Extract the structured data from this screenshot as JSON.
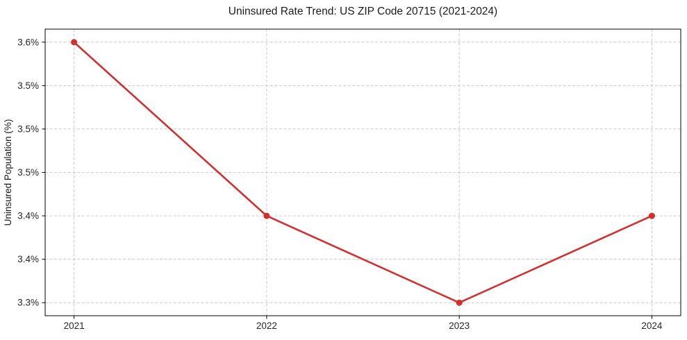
{
  "chart_data": {
    "type": "line",
    "title": "Uninsured Rate Trend: US ZIP Code 20715 (2021-2024)",
    "xlabel": "",
    "ylabel": "Uninsured Population (%)",
    "x": [
      2021,
      2022,
      2023,
      2024
    ],
    "series": [
      {
        "name": "Uninsured Rate",
        "values": [
          3.6,
          3.4,
          3.3,
          3.4
        ]
      }
    ],
    "xtick_labels": [
      "2021",
      "2022",
      "2023",
      "2024"
    ],
    "ytick_values": [
      3.3,
      3.35,
      3.4,
      3.45,
      3.5,
      3.55,
      3.6
    ],
    "ytick_labels": [
      "3.3%",
      "3.4%",
      "3.4%",
      "3.5%",
      "3.5%",
      "3.5%",
      "3.6%"
    ],
    "xlim": [
      2020.85,
      2024.15
    ],
    "ylim": [
      3.285,
      3.615
    ],
    "grid": true,
    "grid_style": "dashed",
    "legend": "none",
    "marker": "circle",
    "colors": {
      "line": "#d32f2f",
      "marker": "#d32f2f",
      "grid": "#cccccc",
      "spine": "#000000",
      "text": "#262626"
    }
  }
}
